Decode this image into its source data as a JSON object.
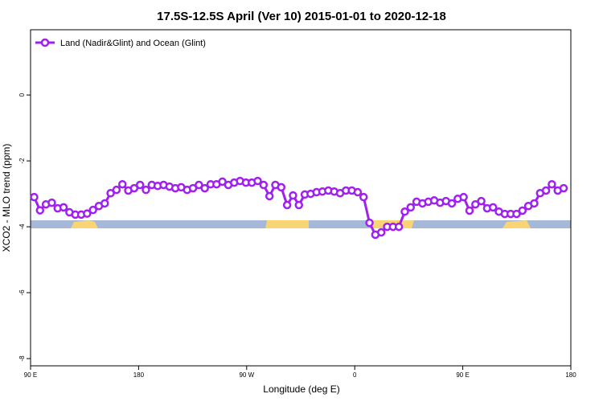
{
  "chart_data": {
    "type": "line",
    "title": "17.5S-12.5S April (Ver 10)   2015-01-01 to 2020-12-18",
    "x_label": "Longitude (deg E)",
    "y_label": "XCO2 - MLO trend (ppm)",
    "x": [
      93,
      97.9,
      102.8,
      107.7,
      112.6,
      117.5,
      122.4,
      127.3,
      132.2,
      137.1,
      142,
      146.9,
      151.8,
      156.7,
      161.6,
      166.5,
      171.4,
      176.3,
      181.2,
      186.1,
      191,
      195.9,
      200.8,
      205.7,
      210.6,
      215.5,
      220.4,
      225.3,
      230.2,
      235.1,
      240,
      244.9,
      249.8,
      254.7,
      259.6,
      264.5,
      269.4,
      274.3,
      279.2,
      284.1,
      289,
      293.9,
      298.8,
      303.7,
      308.6,
      313.5,
      318.4,
      323.3,
      328.2,
      333.1,
      338,
      342.9,
      347.8,
      352.7,
      357.6,
      362.5,
      367.4,
      372.3,
      377.2,
      382.1,
      387,
      391.9,
      396.8,
      401.7,
      406.6,
      411.5,
      416.4,
      421.3,
      426.2,
      431.1,
      436,
      440.9,
      445.8,
      450.7,
      455.6,
      460.5,
      465.4,
      470.3,
      475.2,
      480.1,
      485,
      489.9,
      494.8,
      499.7,
      504.6,
      509.5,
      514.4,
      519.3,
      524.2,
      529.1,
      534
    ],
    "series": [
      {
        "name": "Land (Nadir&Glint) and Ocean (Glint)",
        "color": "#a020f0",
        "values": [
          -3.1,
          -3.5,
          -3.32,
          -3.27,
          -3.44,
          -3.41,
          -3.56,
          -3.63,
          -3.63,
          -3.6,
          -3.49,
          -3.37,
          -3.29,
          -2.98,
          -2.88,
          -2.71,
          -2.9,
          -2.83,
          -2.73,
          -2.88,
          -2.73,
          -2.76,
          -2.73,
          -2.78,
          -2.83,
          -2.8,
          -2.88,
          -2.83,
          -2.73,
          -2.83,
          -2.71,
          -2.71,
          -2.63,
          -2.73,
          -2.66,
          -2.61,
          -2.66,
          -2.66,
          -2.61,
          -2.73,
          -3.07,
          -2.73,
          -2.8,
          -3.34,
          -3.05,
          -3.34,
          -3.02,
          -3.0,
          -2.95,
          -2.93,
          -2.9,
          -2.93,
          -2.98,
          -2.9,
          -2.9,
          -2.95,
          -3.1,
          -3.88,
          -4.24,
          -4.17,
          -4.0,
          -4.0,
          -4.0,
          -3.54,
          -3.41,
          -3.24,
          -3.29,
          -3.24,
          -3.2,
          -3.27,
          -3.22,
          -3.29,
          -3.15,
          -3.1,
          -3.51,
          -3.32,
          -3.22,
          -3.44,
          -3.41,
          -3.54,
          -3.61,
          -3.61,
          -3.61,
          -3.51,
          -3.37,
          -3.29,
          -2.98,
          -2.9,
          -2.71,
          -2.9,
          -2.83
        ]
      }
    ],
    "xlim": [
      90,
      540
    ],
    "xticks": [
      {
        "value": 90,
        "label": "90 E"
      },
      180,
      {
        "value": 270,
        "label": "90 W"
      },
      {
        "value": 360,
        "label": "0"
      },
      {
        "value": 450,
        "label": "90 E"
      },
      {
        "value": 540,
        "label": "180"
      }
    ],
    "ylim": [
      -8.22,
      1.98
    ],
    "yticks": [
      -8,
      -6,
      -4,
      -2,
      0
    ],
    "legend": "top-left"
  }
}
